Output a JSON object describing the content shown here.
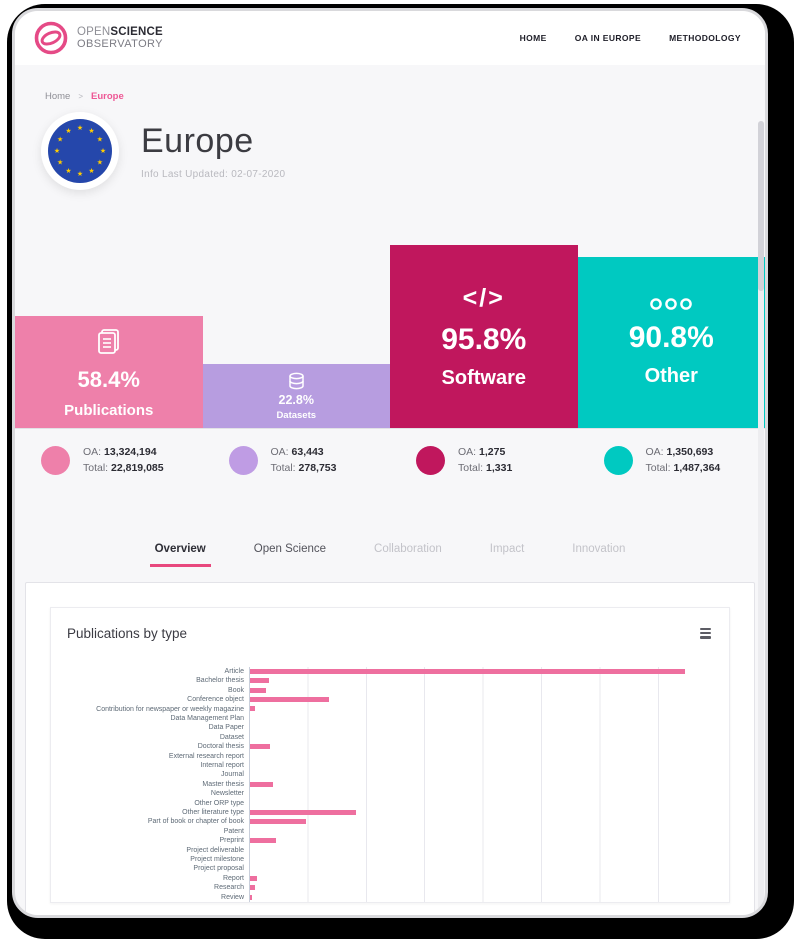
{
  "header": {
    "logo": {
      "open": "OPEN",
      "science": "SCIENCE",
      "observatory": "OBSERVATORY"
    },
    "nav": [
      {
        "label": "HOME"
      },
      {
        "label": "OA IN EUROPE"
      },
      {
        "label": "METHODOLOGY"
      }
    ]
  },
  "breadcrumb": {
    "home": "Home",
    "separator": ">",
    "current": "Europe"
  },
  "page": {
    "title": "Europe",
    "last_updated": "Info Last Updated: 02-07-2020"
  },
  "stat_cards": [
    {
      "id": "publications",
      "icon": "documents-icon",
      "percent": "58.4%",
      "label": "Publications",
      "color": "#ee80aa"
    },
    {
      "id": "datasets",
      "icon": "database-icon",
      "percent": "22.8%",
      "label": "Datasets",
      "color": "#b79de0"
    },
    {
      "id": "software",
      "icon": "code-icon",
      "icon_glyph": "</>",
      "percent": "95.8%",
      "label": "Software",
      "color": "#c0175d"
    },
    {
      "id": "other",
      "icon": "circles-icon",
      "percent": "90.8%",
      "label": "Other",
      "color": "#00c9c1"
    }
  ],
  "legend": [
    {
      "color": "#ee80aa",
      "oa_label": "OA:",
      "oa": "13,324,194",
      "total_label": "Total:",
      "total": "22,819,085"
    },
    {
      "color": "#bf9ce4",
      "oa_label": "OA:",
      "oa": "63,443",
      "total_label": "Total:",
      "total": "278,753"
    },
    {
      "color": "#c0175d",
      "oa_label": "OA:",
      "oa": "1,275",
      "total_label": "Total:",
      "total": "1,331"
    },
    {
      "color": "#00c9c1",
      "oa_label": "OA:",
      "oa": "1,350,693",
      "total_label": "Total:",
      "total": "1,487,364"
    }
  ],
  "tabs": [
    {
      "label": "Overview",
      "active": true
    },
    {
      "label": "Open Science",
      "active": false
    },
    {
      "label": "Collaboration",
      "active": false,
      "muted": true
    },
    {
      "label": "Impact",
      "active": false,
      "muted": true
    },
    {
      "label": "Innovation",
      "active": false,
      "muted": true
    }
  ],
  "chart_card": {
    "title": "Publications by type",
    "menu_icon": "hamburger-menu-icon"
  },
  "chart_data": {
    "type": "bar",
    "orientation": "horizontal",
    "title": "Publications by type",
    "xlabel": "",
    "ylabel": "",
    "legend_position": "none",
    "grid": true,
    "bar_color": "#ee6f9f",
    "x_axis_tick_labels_visible": false,
    "values_unit": "x-axis gridline intervals (tick labels cut off at bottom of screenshot)",
    "xlim": [
      0,
      8.2
    ],
    "categories": [
      "Article",
      "Bachelor thesis",
      "Book",
      "Conference object",
      "Contribution for newspaper or weekly magazine",
      "Data Management Plan",
      "Data Paper",
      "Dataset",
      "Doctoral thesis",
      "External research report",
      "Internal report",
      "Journal",
      "Master thesis",
      "Newsletter",
      "Other ORP type",
      "Other literature type",
      "Part of book or chapter of book",
      "Patent",
      "Preprint",
      "Project deliverable",
      "Project milestone",
      "Project proposal",
      "Report",
      "Research",
      "Review"
    ],
    "values": [
      7.45,
      0.32,
      0.28,
      1.35,
      0.09,
      0,
      0,
      0,
      0.35,
      0,
      0,
      0,
      0.39,
      0,
      0,
      1.82,
      0.96,
      0,
      0.44,
      0,
      0,
      0,
      0.12,
      0.09,
      0.03
    ]
  },
  "theme": {
    "accent_pink": "#e8487e",
    "page_bg": "#f7f7f9",
    "eu_flag_blue": "#2547ab",
    "eu_star_yellow": "#ffcc00"
  }
}
